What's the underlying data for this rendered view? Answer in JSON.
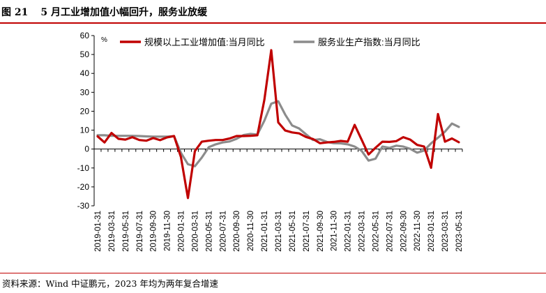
{
  "figure": {
    "number": "图 21",
    "title": "5 月工业增加值小幅回升，服务业放缓",
    "source": "资料来源：Wind   中证鹏元，2023 年均为两年复合增速"
  },
  "colors": {
    "industrial": "#c00000",
    "services": "#8c8c8c",
    "rule": "#c00000"
  },
  "chart_data": {
    "type": "line",
    "unit_label": "%",
    "ylim": [
      -30,
      60
    ],
    "yticks": [
      60,
      50,
      40,
      30,
      20,
      10,
      0,
      -10,
      -20,
      -30
    ],
    "grid": false,
    "legend_position": "top",
    "xtick_labels": [
      "2019-01-31",
      "2019-03-31",
      "2019-05-31",
      "2019-07-31",
      "2019-09-30",
      "2019-11-30",
      "2020-01-31",
      "2020-03-31",
      "2020-05-31",
      "2020-07-31",
      "2020-09-30",
      "2020-11-30",
      "2021-01-31",
      "2021-03-31",
      "2021-05-31",
      "2021-07-31",
      "2021-09-30",
      "2021-11-30",
      "2022-01-31",
      "2022-03-31",
      "2022-05-31",
      "2022-07-31",
      "2022-09-30",
      "2022-11-30",
      "2023-01-31",
      "2023-03-31",
      "2023-05-31"
    ],
    "x": [
      "2019-01",
      "2019-02",
      "2019-03",
      "2019-04",
      "2019-05",
      "2019-06",
      "2019-07",
      "2019-08",
      "2019-09",
      "2019-10",
      "2019-11",
      "2019-12",
      "2020-01",
      "2020-02",
      "2020-03",
      "2020-04",
      "2020-05",
      "2020-06",
      "2020-07",
      "2020-08",
      "2020-09",
      "2020-10",
      "2020-11",
      "2020-12",
      "2021-01",
      "2021-02",
      "2021-03",
      "2021-04",
      "2021-05",
      "2021-06",
      "2021-07",
      "2021-08",
      "2021-09",
      "2021-10",
      "2021-11",
      "2021-12",
      "2022-01",
      "2022-02",
      "2022-03",
      "2022-04",
      "2022-05",
      "2022-06",
      "2022-07",
      "2022-08",
      "2022-09",
      "2022-10",
      "2022-11",
      "2022-12",
      "2023-01",
      "2023-02",
      "2023-03",
      "2023-04",
      "2023-05"
    ],
    "series": [
      {
        "name": "规模以上工业增加值:当月同比",
        "values": [
          6.7,
          3.5,
          8.5,
          5.4,
          5.0,
          6.3,
          4.8,
          4.4,
          5.8,
          4.7,
          6.2,
          6.9,
          -4.3,
          -25.9,
          -1.1,
          3.9,
          4.4,
          4.8,
          4.8,
          5.6,
          6.9,
          6.9,
          7.0,
          7.3,
          26.0,
          52.3,
          14.1,
          9.8,
          8.8,
          8.3,
          6.4,
          5.3,
          3.1,
          3.5,
          3.8,
          4.3,
          3.9,
          12.8,
          5.0,
          -2.9,
          0.7,
          3.9,
          3.8,
          4.2,
          6.3,
          5.0,
          2.2,
          1.3,
          -9.9,
          18.5,
          3.9,
          5.6,
          3.6
        ]
      },
      {
        "name": "服务业生产指数:当月同比",
        "values": [
          7.3,
          7.3,
          7.0,
          7.0,
          7.0,
          7.0,
          6.9,
          6.7,
          6.6,
          6.6,
          6.6,
          6.8,
          -2.0,
          -8.0,
          -9.1,
          -4.5,
          1.0,
          2.5,
          3.5,
          4.0,
          5.4,
          7.4,
          8.0,
          7.7,
          15.0,
          24.0,
          25.3,
          18.2,
          12.5,
          10.9,
          7.8,
          4.8,
          5.2,
          3.8,
          3.1,
          3.0,
          2.5,
          1.3,
          -0.9,
          -6.1,
          -5.1,
          1.3,
          0.6,
          1.8,
          1.3,
          0.1,
          -1.9,
          -0.8,
          3.0,
          6.0,
          9.2,
          13.5,
          11.7
        ]
      }
    ]
  }
}
